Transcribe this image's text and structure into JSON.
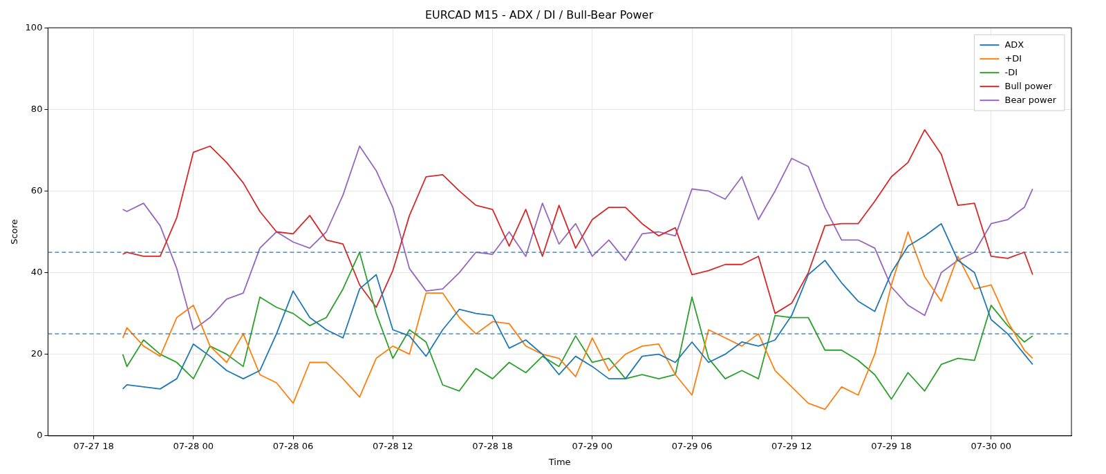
{
  "chart_data": {
    "type": "line",
    "title": "EURCAD M15 - ADX / DI / Bull-Bear Power",
    "xlabel": "Time",
    "ylabel": "Score",
    "x": [
      "--07-27T19:45",
      "--07-27T20:00",
      "--07-27T21:00",
      "--07-27T22:00",
      "--07-27T23:00",
      "--07-28T00:00",
      "--07-28T01:00",
      "--07-28T02:00",
      "--07-28T03:00",
      "--07-28T04:00",
      "--07-28T05:00",
      "--07-28T06:00",
      "--07-28T07:00",
      "--07-28T08:00",
      "--07-28T09:00",
      "--07-28T10:00",
      "--07-28T11:00",
      "--07-28T12:00",
      "--07-28T13:00",
      "--07-28T14:00",
      "--07-28T15:00",
      "--07-28T16:00",
      "--07-28T17:00",
      "--07-28T18:00",
      "--07-28T19:00",
      "--07-28T20:00",
      "--07-28T21:00",
      "--07-28T22:00",
      "--07-28T23:00",
      "--07-29T00:00",
      "--07-29T01:00",
      "--07-29T02:00",
      "--07-29T03:00",
      "--07-29T04:00",
      "--07-29T05:00",
      "--07-29T06:00",
      "--07-29T07:00",
      "--07-29T08:00",
      "--07-29T09:00",
      "--07-29T10:00",
      "--07-29T11:00",
      "--07-29T12:00",
      "--07-29T13:00",
      "--07-29T14:00",
      "--07-29T15:00",
      "--07-29T16:00",
      "--07-29T17:00",
      "--07-29T18:00",
      "--07-29T19:00",
      "--07-29T20:00",
      "--07-29T21:00",
      "--07-29T22:00",
      "--07-29T23:00",
      "--07-30T00:00",
      "--07-30T01:00",
      "--07-30T02:00",
      "--07-30T02:30"
    ],
    "series": [
      {
        "name": "ADX",
        "color": "#1f77b4",
        "values": [
          11.5,
          12.5,
          12,
          11.5,
          14,
          22.5,
          19.5,
          16,
          14,
          16,
          25,
          35.5,
          29,
          26,
          24,
          36,
          39.5,
          26,
          24.5,
          19.5,
          26,
          31,
          30,
          29.5,
          21.5,
          23.5,
          20,
          15,
          19.5,
          17,
          14,
          14,
          19.5,
          20,
          18,
          23,
          18,
          20,
          23,
          22,
          23.5,
          29.5,
          39.5,
          43,
          37.5,
          33,
          30.5,
          40,
          46.5,
          49,
          52,
          43,
          40,
          28.5,
          25,
          20,
          17.5
        ]
      },
      {
        "name": "+DI",
        "color": "#ff7f0e",
        "values": [
          24,
          26.5,
          22,
          19.5,
          29,
          32,
          22,
          18,
          25,
          15,
          13,
          8,
          18,
          18,
          14,
          9.5,
          19,
          22,
          20,
          35,
          35,
          29,
          25,
          28,
          27.5,
          22,
          20,
          19,
          14.5,
          24,
          16,
          20,
          22,
          22.5,
          15,
          10,
          26,
          24,
          22,
          25,
          16,
          12,
          8,
          6.5,
          12,
          10,
          20,
          37,
          50,
          39,
          33,
          44,
          36,
          37,
          28,
          21,
          19
        ]
      },
      {
        "name": "-DI",
        "color": "#2ca02c",
        "values": [
          20,
          17,
          23.5,
          20,
          18,
          14,
          22,
          20,
          17,
          34,
          31.5,
          30,
          27,
          29,
          36,
          45,
          30,
          19,
          26,
          23,
          12.5,
          11,
          16.5,
          14,
          18,
          15.5,
          19.5,
          17,
          24.5,
          18,
          19,
          14,
          15,
          14,
          15,
          34,
          19,
          14,
          16,
          14,
          29.5,
          29,
          29,
          21,
          21,
          18.5,
          15,
          9,
          15.5,
          11,
          17.5,
          19,
          18.5,
          32,
          27,
          23,
          24.5
        ]
      },
      {
        "name": "Bull power",
        "color": "#d62728",
        "values": [
          44.5,
          45,
          44,
          44,
          53.5,
          69.5,
          71,
          67,
          62,
          55,
          50,
          49.5,
          54,
          48,
          47,
          37,
          31.5,
          40.5,
          54,
          63.5,
          64,
          60,
          56.5,
          55.5,
          46.5,
          55.5,
          44,
          56.5,
          46,
          53,
          56,
          56,
          52,
          49,
          51,
          39.5,
          40.5,
          42,
          42,
          44,
          30,
          32.5,
          40,
          51.5,
          52,
          52,
          57.5,
          63.5,
          67,
          75,
          69,
          56.5,
          57,
          44,
          43.5,
          45,
          39.5
        ]
      },
      {
        "name": "Bear power",
        "color": "#9467bd",
        "values": [
          55.5,
          55,
          57,
          51.5,
          41,
          26,
          29,
          33.5,
          35,
          46,
          50,
          47.5,
          46,
          50,
          59,
          71,
          65,
          56,
          41,
          35.5,
          36,
          40,
          45,
          44.5,
          50,
          44,
          57,
          47,
          52,
          44,
          48,
          43,
          49.5,
          50,
          49,
          60.5,
          60,
          58,
          63.5,
          53,
          60,
          68,
          66,
          56,
          48,
          48,
          46,
          36.5,
          32,
          29.5,
          40,
          43,
          45,
          52,
          53,
          56,
          60.5
        ]
      }
    ],
    "xlim": [
      "--07-27T15:15",
      "--07-30T04:50"
    ],
    "xticks": [
      {
        "value": "--07-27T18:00",
        "label": "07-27 18"
      },
      {
        "value": "--07-28T00:00",
        "label": "07-28 00"
      },
      {
        "value": "--07-28T06:00",
        "label": "07-28 06"
      },
      {
        "value": "--07-28T12:00",
        "label": "07-28 12"
      },
      {
        "value": "--07-28T18:00",
        "label": "07-28 18"
      },
      {
        "value": "--07-29T00:00",
        "label": "07-29 00"
      },
      {
        "value": "--07-29T06:00",
        "label": "07-29 06"
      },
      {
        "value": "--07-29T12:00",
        "label": "07-29 12"
      },
      {
        "value": "--07-29T18:00",
        "label": "07-29 18"
      },
      {
        "value": "--07-30T00:00",
        "label": "07-30 00"
      }
    ],
    "ylim": [
      0,
      100
    ],
    "yticks": [
      0,
      20,
      40,
      60,
      80,
      100
    ],
    "ref_lines": [
      {
        "axis": "y",
        "value": 45,
        "color": "#1f77b4",
        "line_style": "dashed"
      },
      {
        "axis": "y",
        "value": 25,
        "color": "#1f77b4",
        "line_style": "dashed"
      }
    ],
    "grid": true,
    "legend": "top right",
    "marker": "none",
    "line_style": "solid"
  }
}
